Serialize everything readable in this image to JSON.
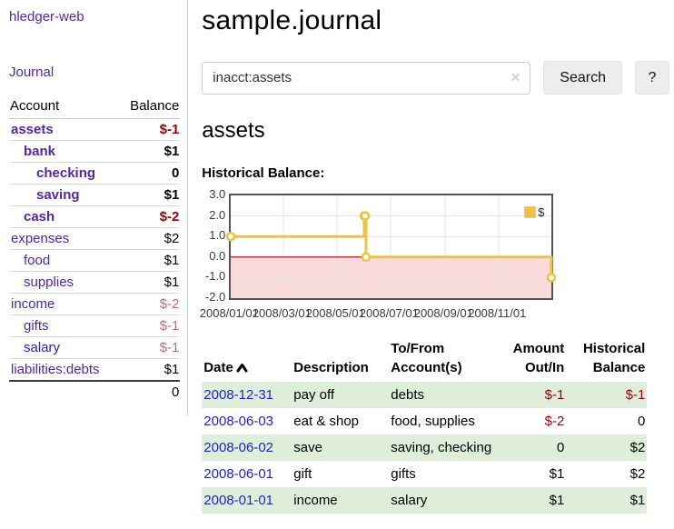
{
  "app": {
    "title": "hledger-web",
    "nav_journal": "Journal"
  },
  "sidebar": {
    "headers": {
      "account": "Account",
      "balance": "Balance"
    },
    "accounts": [
      {
        "name": "assets",
        "balance": "$-1",
        "indent": 0,
        "bold": true,
        "neg": "strong"
      },
      {
        "name": "bank",
        "balance": "$1",
        "indent": 1,
        "bold": true,
        "neg": "none"
      },
      {
        "name": "checking",
        "balance": "0",
        "indent": 2,
        "bold": true,
        "neg": "none"
      },
      {
        "name": "saving",
        "balance": "$1",
        "indent": 2,
        "bold": true,
        "neg": "none"
      },
      {
        "name": "cash",
        "balance": "$-2",
        "indent": 1,
        "bold": true,
        "neg": "strong"
      },
      {
        "name": "expenses",
        "balance": "$2",
        "indent": 0,
        "bold": false,
        "neg": "none"
      },
      {
        "name": "food",
        "balance": "$1",
        "indent": 1,
        "bold": false,
        "neg": "none"
      },
      {
        "name": "supplies",
        "balance": "$1",
        "indent": 1,
        "bold": false,
        "neg": "none"
      },
      {
        "name": "income",
        "balance": "$-2",
        "indent": 0,
        "bold": false,
        "neg": "soft"
      },
      {
        "name": "gifts",
        "balance": "$-1",
        "indent": 1,
        "bold": false,
        "neg": "soft"
      },
      {
        "name": "salary",
        "balance": "$-1",
        "indent": 1,
        "bold": false,
        "neg": "soft",
        "link_color": "blue"
      },
      {
        "name": "liabilities:debts",
        "balance": "$1",
        "indent": 0,
        "bold": false,
        "neg": "none"
      }
    ],
    "total": "0"
  },
  "main": {
    "title": "sample.journal",
    "search": {
      "value": "inacct:assets",
      "clear_icon": "✕",
      "button_label": "Search",
      "help_label": "?"
    },
    "account_heading": "assets",
    "chart_heading": "Historical Balance:"
  },
  "chart_data": {
    "type": "line",
    "subtype": "step",
    "title": "Historical Balance:",
    "series": [
      {
        "name": "$",
        "color": "#edc240",
        "points": [
          [
            "2008-01-01",
            1
          ],
          [
            "2008-06-01",
            2
          ],
          [
            "2008-06-02",
            2
          ],
          [
            "2008-06-03",
            0
          ],
          [
            "2008-12-31",
            -1
          ]
        ]
      }
    ],
    "x_range": [
      "2008-01-01",
      "2008-12-31"
    ],
    "x_ticks": [
      "2008/01/01",
      "2008/03/01",
      "2008/05/01",
      "2008/07/01",
      "2008/09/01",
      "2008/11/01"
    ],
    "y_ticks": [
      "3.0",
      "2.0",
      "1.0",
      "0.0",
      "-1.0",
      "-2.0"
    ],
    "ylim": [
      -2,
      3
    ],
    "grid": true,
    "legend_position": "top-right",
    "zero_line_color": "#a40000",
    "negative_region_color": "#f9dbdb",
    "grid_color": "#e3e3e3"
  },
  "register": {
    "headers": {
      "date": "Date",
      "description": "Description",
      "accounts": "To/From Account(s)",
      "amount": "Amount Out/In",
      "balance": "Historical Balance"
    },
    "rows": [
      {
        "date": "2008-12-31",
        "description": "pay off",
        "accounts": "debts",
        "amount": "$-1",
        "amount_neg": true,
        "balance": "$-1",
        "balance_neg": true,
        "striped": true
      },
      {
        "date": "2008-06-03",
        "description": "eat & shop",
        "accounts": "food, supplies",
        "amount": "$-2",
        "amount_neg": true,
        "balance": "0",
        "balance_neg": false,
        "striped": false
      },
      {
        "date": "2008-06-02",
        "description": "save",
        "accounts": "saving, checking",
        "amount": "0",
        "amount_neg": false,
        "balance": "$2",
        "balance_neg": false,
        "striped": true
      },
      {
        "date": "2008-06-01",
        "description": "gift",
        "accounts": "gifts",
        "amount": "$1",
        "amount_neg": false,
        "balance": "$2",
        "balance_neg": false,
        "striped": false
      },
      {
        "date": "2008-01-01",
        "description": "income",
        "accounts": "salary",
        "amount": "$1",
        "amount_neg": false,
        "balance": "$1",
        "balance_neg": false,
        "striped": true
      }
    ]
  }
}
